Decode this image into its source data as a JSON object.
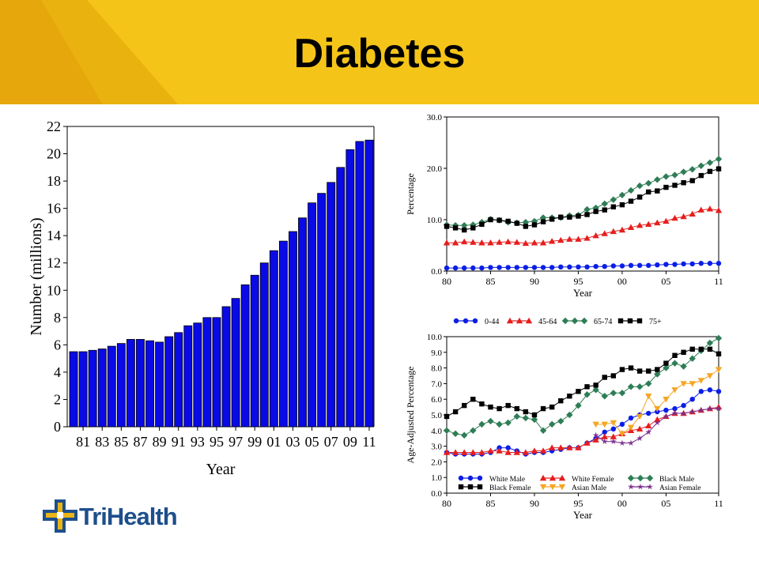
{
  "title": "Diabetes",
  "logo_text": "TriHealth",
  "colors": {
    "banner": "#f5c418",
    "banner_dark": "#e8a90c",
    "bar": "#0a0ae6",
    "logo_blue": "#1d4f8c",
    "logo_gold": "#e8b417"
  },
  "chart_data": [
    {
      "type": "bar",
      "title": "",
      "xlabel": "Year",
      "ylabel": "Number (millions)",
      "ylim": [
        0,
        22
      ],
      "yticks": [
        "0",
        "2",
        "4",
        "6",
        "8",
        "10",
        "12",
        "14",
        "16",
        "18",
        "20",
        "22"
      ],
      "xtick_labels": [
        "81",
        "83",
        "85",
        "87",
        "89",
        "91",
        "93",
        "95",
        "97",
        "99",
        "01",
        "03",
        "05",
        "07",
        "09",
        "11"
      ],
      "categories": [
        "1980",
        "1981",
        "1982",
        "1983",
        "1984",
        "1985",
        "1986",
        "1987",
        "1988",
        "1989",
        "1990",
        "1991",
        "1992",
        "1993",
        "1994",
        "1995",
        "1996",
        "1997",
        "1998",
        "1999",
        "2000",
        "2001",
        "2002",
        "2003",
        "2004",
        "2005",
        "2006",
        "2007",
        "2008",
        "2009",
        "2010",
        "2011"
      ],
      "values": [
        5.5,
        5.5,
        5.6,
        5.7,
        5.9,
        6.1,
        6.4,
        6.4,
        6.3,
        6.2,
        6.6,
        6.9,
        7.4,
        7.6,
        8.0,
        8.0,
        8.8,
        9.4,
        10.4,
        11.1,
        12.0,
        12.9,
        13.6,
        14.3,
        15.3,
        16.4,
        17.1,
        17.9,
        19.0,
        20.3,
        20.9,
        21.0
      ],
      "grid": false
    },
    {
      "type": "line",
      "title": "",
      "xlabel": "Year",
      "ylabel": "Percentage",
      "ylim": [
        0,
        30
      ],
      "yticks": [
        "0.0",
        "10.0",
        "20.0",
        "30.0"
      ],
      "xtick_labels": [
        "80",
        "85",
        "90",
        "95",
        "00",
        "05",
        "11"
      ],
      "x": [
        1980,
        1981,
        1982,
        1983,
        1984,
        1985,
        1986,
        1987,
        1988,
        1989,
        1990,
        1991,
        1992,
        1993,
        1994,
        1995,
        1996,
        1997,
        1998,
        1999,
        2000,
        2001,
        2002,
        2003,
        2004,
        2005,
        2006,
        2007,
        2008,
        2009,
        2010,
        2011
      ],
      "legend_position": "bottom",
      "series": [
        {
          "name": "0-44",
          "color": "#0a1ee6",
          "marker": "circle",
          "values": [
            0.6,
            0.6,
            0.6,
            0.6,
            0.6,
            0.7,
            0.7,
            0.7,
            0.7,
            0.7,
            0.7,
            0.7,
            0.7,
            0.8,
            0.8,
            0.8,
            0.8,
            0.9,
            0.9,
            1.0,
            1.0,
            1.1,
            1.1,
            1.1,
            1.2,
            1.3,
            1.3,
            1.4,
            1.4,
            1.5,
            1.5,
            1.5
          ]
        },
        {
          "name": "45-64",
          "color": "#e61e1e",
          "marker": "triangle",
          "values": [
            5.5,
            5.5,
            5.7,
            5.6,
            5.5,
            5.5,
            5.6,
            5.7,
            5.6,
            5.4,
            5.5,
            5.5,
            5.8,
            6.0,
            6.2,
            6.2,
            6.4,
            6.9,
            7.3,
            7.7,
            8.0,
            8.5,
            8.9,
            9.1,
            9.4,
            9.7,
            10.3,
            10.6,
            11.1,
            11.9,
            12.1,
            11.8
          ]
        },
        {
          "name": "65-74",
          "color": "#2e7d55",
          "marker": "diamond",
          "values": [
            9.0,
            8.9,
            8.9,
            9.0,
            9.5,
            10.1,
            9.9,
            9.5,
            9.4,
            9.5,
            9.7,
            10.4,
            10.4,
            10.4,
            10.8,
            10.9,
            12.0,
            12.3,
            13.1,
            13.9,
            14.8,
            15.7,
            16.6,
            17.1,
            17.8,
            18.4,
            18.7,
            19.3,
            19.8,
            20.5,
            21.1,
            21.8
          ]
        },
        {
          "name": "75+",
          "color": "#000000",
          "marker": "square",
          "values": [
            8.7,
            8.4,
            8.0,
            8.4,
            9.1,
            10.0,
            9.9,
            9.7,
            9.3,
            8.7,
            9.0,
            9.6,
            10.1,
            10.5,
            10.5,
            10.7,
            11.0,
            11.6,
            11.9,
            12.5,
            12.9,
            13.6,
            14.4,
            15.4,
            15.6,
            16.3,
            16.7,
            17.2,
            17.6,
            18.6,
            19.4,
            19.9
          ]
        }
      ],
      "grid": false
    },
    {
      "type": "line",
      "title": "",
      "xlabel": "Year",
      "ylabel": "Age-Adjusted Percentage",
      "ylim": [
        0,
        10
      ],
      "yticks": [
        "0.0",
        "1.0",
        "2.0",
        "3.0",
        "4.0",
        "5.0",
        "6.0",
        "7.0",
        "8.0",
        "9.0",
        "10.0"
      ],
      "xtick_labels": [
        "80",
        "85",
        "90",
        "95",
        "00",
        "05",
        "11"
      ],
      "x": [
        1980,
        1981,
        1982,
        1983,
        1984,
        1985,
        1986,
        1987,
        1988,
        1989,
        1990,
        1991,
        1992,
        1993,
        1994,
        1995,
        1996,
        1997,
        1998,
        1999,
        2000,
        2001,
        2002,
        2003,
        2004,
        2005,
        2006,
        2007,
        2008,
        2009,
        2010,
        2011
      ],
      "legend_position": "bottom-inside",
      "series": [
        {
          "name": "White Male",
          "color": "#0a1ee6",
          "marker": "circle",
          "values": [
            2.6,
            2.5,
            2.5,
            2.5,
            2.5,
            2.6,
            2.9,
            2.9,
            2.7,
            2.5,
            2.6,
            2.6,
            2.7,
            2.8,
            2.9,
            2.9,
            3.2,
            3.5,
            3.9,
            4.1,
            4.4,
            4.8,
            5.0,
            5.1,
            5.2,
            5.3,
            5.4,
            5.6,
            6.0,
            6.5,
            6.6,
            6.5
          ]
        },
        {
          "name": "White Female",
          "color": "#e61e1e",
          "marker": "triangle",
          "values": [
            2.6,
            2.6,
            2.6,
            2.6,
            2.6,
            2.7,
            2.7,
            2.6,
            2.6,
            2.6,
            2.7,
            2.7,
            2.9,
            2.9,
            2.9,
            2.9,
            3.2,
            3.4,
            3.6,
            3.6,
            3.8,
            4.0,
            4.1,
            4.3,
            4.7,
            4.9,
            5.1,
            5.1,
            5.2,
            5.3,
            5.4,
            5.5
          ]
        },
        {
          "name": "Black Male",
          "color": "#2e7d55",
          "marker": "diamond",
          "values": [
            4.0,
            3.8,
            3.7,
            4.0,
            4.4,
            4.6,
            4.4,
            4.5,
            4.9,
            4.8,
            4.7,
            4.0,
            4.4,
            4.6,
            5.0,
            5.6,
            6.3,
            6.6,
            6.2,
            6.4,
            6.4,
            6.8,
            6.8,
            7.0,
            7.6,
            8.0,
            8.3,
            8.1,
            8.6,
            9.1,
            9.6,
            9.9
          ]
        },
        {
          "name": "Black Female",
          "color": "#000000",
          "marker": "square",
          "values": [
            4.9,
            5.2,
            5.6,
            6.0,
            5.7,
            5.5,
            5.4,
            5.6,
            5.4,
            5.2,
            5.0,
            5.4,
            5.5,
            5.9,
            6.2,
            6.5,
            6.8,
            6.9,
            7.4,
            7.5,
            7.9,
            8.0,
            7.8,
            7.8,
            7.9,
            8.3,
            8.8,
            9.0,
            9.2,
            9.2,
            9.2,
            8.9
          ]
        },
        {
          "name": "Asian Male",
          "color": "#f5a623",
          "marker": "triangle-down",
          "values": [
            null,
            null,
            null,
            null,
            null,
            null,
            null,
            null,
            null,
            null,
            null,
            null,
            null,
            null,
            null,
            null,
            null,
            4.4,
            4.4,
            4.5,
            3.8,
            4.2,
            4.9,
            6.2,
            5.4,
            6.0,
            6.6,
            7.0,
            7.0,
            7.2,
            7.5,
            7.9
          ]
        },
        {
          "name": "Asian Female",
          "color": "#7b2d8e",
          "marker": "star",
          "values": [
            null,
            null,
            null,
            null,
            null,
            null,
            null,
            null,
            null,
            null,
            null,
            null,
            null,
            null,
            null,
            null,
            null,
            3.7,
            3.3,
            3.3,
            3.2,
            3.2,
            3.5,
            3.9,
            4.5,
            4.9,
            5.1,
            5.1,
            5.2,
            5.3,
            5.4,
            5.4
          ]
        }
      ],
      "grid": false
    }
  ]
}
